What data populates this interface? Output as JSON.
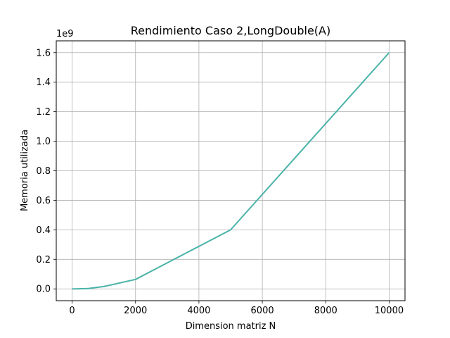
{
  "chart_data": {
    "type": "line",
    "title": "Rendimiento Caso 2,LongDouble(A)",
    "xlabel": "Dimension matriz N",
    "ylabel": "Memoria utilizada",
    "y_offset_label": "1e9",
    "xlim": [
      -500,
      10500
    ],
    "ylim": [
      -0.08,
      1.68
    ],
    "x_ticks": [
      0,
      2000,
      4000,
      6000,
      8000,
      10000
    ],
    "x_tick_labels": [
      "0",
      "2000",
      "4000",
      "6000",
      "8000",
      "10000"
    ],
    "y_ticks": [
      0.0,
      0.2,
      0.4,
      0.6,
      0.8,
      1.0,
      1.2,
      1.4,
      1.6
    ],
    "y_tick_labels": [
      "0.0",
      "0.2",
      "0.4",
      "0.6",
      "0.8",
      "1.0",
      "1.2",
      "1.4",
      "1.6"
    ],
    "grid": true,
    "line_color": "#4ab3a8",
    "x": [
      1,
      10,
      100,
      500,
      1000,
      2000,
      5000,
      10000
    ],
    "series": [
      {
        "values": [
          0.0,
          0.0,
          0.0,
          0.002,
          0.016,
          0.064,
          0.4,
          1.6
        ]
      }
    ]
  }
}
